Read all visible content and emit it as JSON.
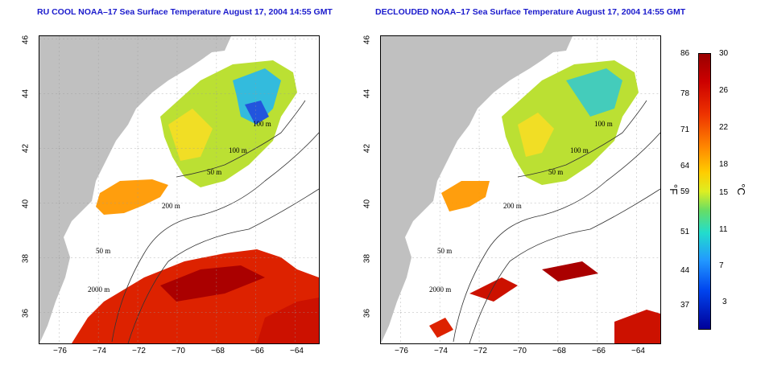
{
  "titles": {
    "left": "RU COOL NOAA–17 Sea Surface Temperature August 17, 2004 14:55 GMT",
    "right": "DECLOUDED NOAA–17 Sea Surface Temperature August 17, 2004 14:55 GMT"
  },
  "axes": {
    "x_ticks": [
      "−76",
      "−74",
      "−72",
      "−70",
      "−68",
      "−66",
      "−64"
    ],
    "y_ticks": [
      "46",
      "44",
      "42",
      "40",
      "38",
      "36"
    ]
  },
  "contours": {
    "left": [
      "100 m",
      "100 m",
      "50 m",
      "200 m",
      "50 m",
      "2000 m"
    ],
    "right": [
      "100 m",
      "100 m",
      "50 m",
      "200 m",
      "50 m",
      "2000 m"
    ]
  },
  "colorbar": {
    "fahrenheit_ticks": [
      "86",
      "78",
      "71",
      "64",
      "59",
      "51",
      "44",
      "37"
    ],
    "celsius_ticks": [
      "30",
      "26",
      "22",
      "18",
      "15",
      "11",
      "7",
      "3"
    ],
    "fahrenheit_unit": "°F",
    "celsius_unit": "°C",
    "colors": {
      "hot": "#cc0000",
      "warm": "#ff8800",
      "mid": "#ddee22",
      "cool": "#22ddcc",
      "cold": "#0044ee",
      "land": "#c0c0c0"
    }
  }
}
